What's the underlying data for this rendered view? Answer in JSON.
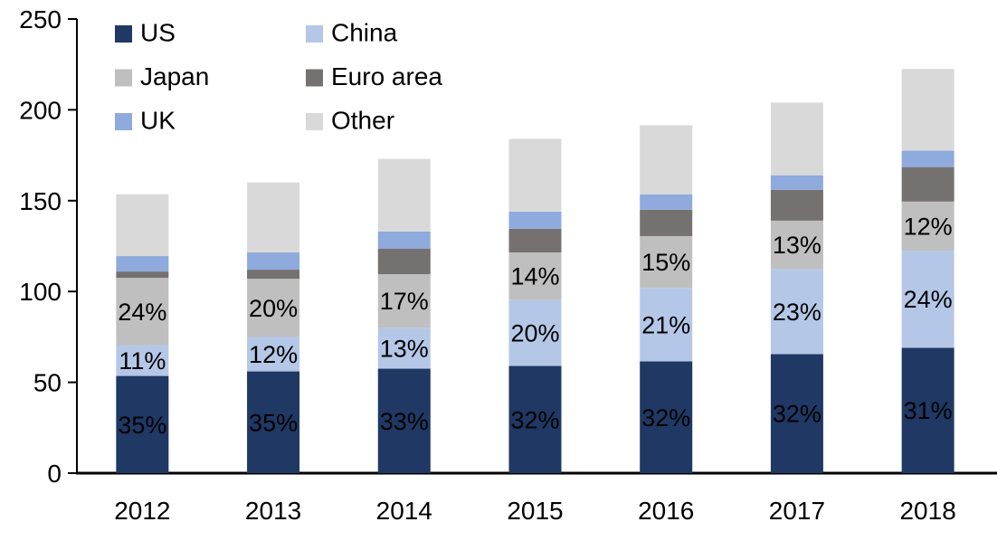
{
  "chart_data": {
    "type": "bar",
    "stacked": true,
    "title": "",
    "categories": [
      "2012",
      "2013",
      "2014",
      "2015",
      "2016",
      "2017",
      "2018"
    ],
    "series": [
      {
        "name": "US",
        "color": "#1f3864",
        "values": [
          53.5,
          56,
          57.5,
          59,
          61.5,
          65.5,
          69
        ],
        "labels": [
          "35%",
          "35%",
          "33%",
          "32%",
          "32%",
          "32%",
          "31%"
        ],
        "label_color": "#ffffff"
      },
      {
        "name": "China",
        "color": "#b4c7e7",
        "values": [
          17,
          19,
          22.5,
          36.5,
          40.5,
          47,
          53.5
        ],
        "labels": [
          "11%",
          "12%",
          "13%",
          "20%",
          "21%",
          "23%",
          "24%"
        ],
        "label_color": "#000000"
      },
      {
        "name": "Japan",
        "color": "#bfbfbf",
        "values": [
          37,
          32,
          29.5,
          26,
          28.5,
          26.5,
          27
        ],
        "labels": [
          "24%",
          "20%",
          "17%",
          "14%",
          "15%",
          "13%",
          "12%"
        ],
        "label_color": "#000000"
      },
      {
        "name": "Euro area",
        "color": "#767171",
        "values": [
          3.5,
          5,
          14,
          13,
          14.5,
          17,
          19
        ],
        "labels": null,
        "label_color": null
      },
      {
        "name": "UK",
        "color": "#8faadc",
        "values": [
          8.5,
          9.5,
          9.5,
          9.5,
          8.5,
          8,
          9
        ],
        "labels": null,
        "label_color": null
      },
      {
        "name": "Other",
        "color": "#d9d9d9",
        "values": [
          34,
          38.5,
          40,
          40,
          38,
          40,
          45
        ],
        "labels": null,
        "label_color": null
      }
    ],
    "totals": [
      153.5,
      160,
      173,
      184,
      191.5,
      204,
      222.5
    ],
    "xlabel": "",
    "ylabel": "",
    "ylim": [
      0,
      250
    ],
    "yticks": [
      0,
      50,
      100,
      150,
      200,
      250
    ],
    "ytick_labels": [
      "0",
      "50",
      "100",
      "150",
      "200",
      "250"
    ],
    "grid": false,
    "legend_position": "top-left",
    "legend_columns": 2,
    "axis_color": "#000000",
    "text_color": "#000000",
    "background_color": "#ffffff"
  }
}
